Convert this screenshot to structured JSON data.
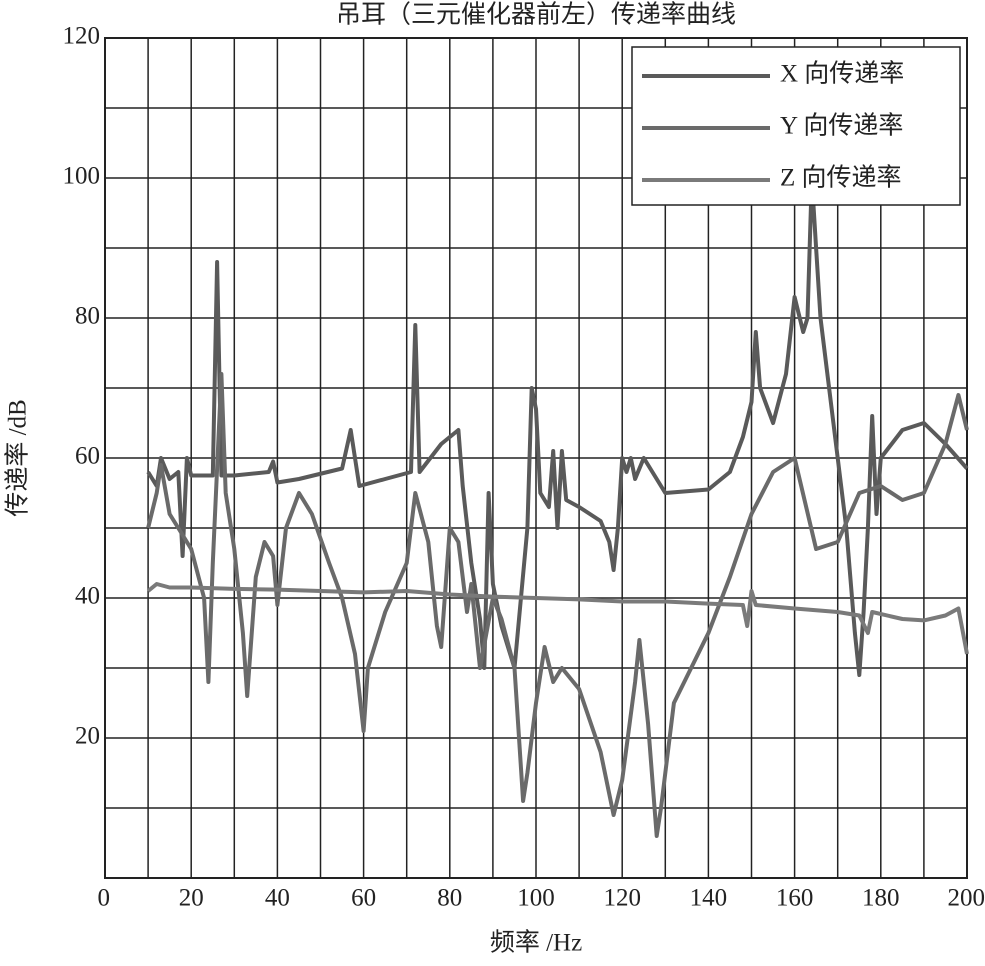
{
  "chart_data": {
    "type": "line",
    "title": "吊耳（三元催化器前左）传递率曲线",
    "xlabel": "频率 /Hz",
    "ylabel": "传递率 /dB",
    "xlim": [
      0,
      200
    ],
    "xticks": [
      0,
      20,
      40,
      60,
      80,
      100,
      120,
      140,
      160,
      180,
      200
    ],
    "ylim": [
      0,
      120
    ],
    "yticks": [
      0,
      20,
      40,
      60,
      80,
      100,
      120
    ],
    "grid": true,
    "legend": "upper right",
    "series": [
      {
        "name": "X 向传递率",
        "color": "#5a5a5a",
        "x": [
          10,
          12,
          13,
          15,
          17,
          18,
          19,
          20,
          25,
          26,
          27,
          30,
          38,
          39,
          40,
          45,
          55,
          57,
          59,
          65,
          71,
          72,
          73,
          78,
          82,
          83,
          85,
          87,
          88,
          89,
          90,
          92,
          95,
          98,
          99,
          100,
          101,
          103,
          104,
          105,
          106,
          107,
          110,
          115,
          117,
          118,
          119,
          120,
          121,
          122,
          123,
          125,
          127,
          130,
          140,
          145,
          148,
          150,
          151,
          152,
          155,
          158,
          160,
          162,
          163,
          164,
          165,
          166,
          168,
          170,
          172,
          174,
          175,
          176,
          177,
          178,
          179,
          180,
          185,
          190,
          195,
          200
        ],
        "values": [
          58,
          56,
          60,
          57,
          58,
          46,
          60,
          57.5,
          57.5,
          88,
          57.5,
          57.5,
          58,
          59.5,
          56.5,
          57,
          58.5,
          64,
          56,
          57,
          58,
          79,
          58,
          62,
          64,
          56,
          45,
          37,
          30,
          55,
          42,
          36,
          30,
          50,
          70,
          67,
          55,
          53,
          61,
          50,
          61,
          54,
          53,
          51,
          48,
          44,
          50,
          60,
          58,
          60,
          57,
          60,
          58,
          55,
          55.5,
          58,
          63,
          68,
          78,
          70,
          65,
          72,
          83,
          78,
          80,
          100,
          90,
          80,
          70,
          60,
          50,
          35,
          29,
          38,
          50,
          66,
          52,
          60,
          64,
          65,
          62,
          58.5
        ]
      },
      {
        "name": "Y 向传递率",
        "color": "#6a6a6a",
        "x": [
          10,
          12,
          13,
          15,
          17,
          20,
          23,
          24,
          25,
          27,
          28,
          30,
          32,
          33,
          35,
          37,
          39,
          40,
          42,
          45,
          48,
          52,
          55,
          58,
          60,
          61,
          65,
          70,
          72,
          75,
          77,
          78,
          80,
          82,
          84,
          85,
          87,
          90,
          92,
          95,
          97,
          98,
          100,
          102,
          104,
          106,
          110,
          115,
          118,
          120,
          123,
          124,
          126,
          128,
          129,
          132,
          140,
          145,
          150,
          155,
          160,
          165,
          170,
          175,
          180,
          185,
          190,
          195,
          198,
          200
        ],
        "values": [
          50,
          55,
          59,
          52,
          50,
          47,
          40,
          28,
          45,
          72,
          55,
          47,
          35,
          26,
          43,
          48,
          46,
          39,
          50,
          55,
          52,
          45,
          40,
          32,
          21,
          30,
          38,
          45,
          55,
          48,
          36,
          33,
          50,
          48,
          38,
          42,
          30,
          40,
          37,
          30,
          11,
          15,
          25,
          33,
          28,
          30,
          27,
          18,
          9,
          14,
          28,
          34,
          22,
          6,
          10,
          25,
          35,
          43,
          52,
          58,
          60,
          47,
          48,
          55,
          56,
          54,
          55,
          62,
          69,
          64
        ]
      },
      {
        "name": "Z 向传递率",
        "color": "#7a7a7a",
        "x": [
          10,
          12,
          15,
          20,
          30,
          40,
          50,
          60,
          70,
          80,
          90,
          100,
          110,
          120,
          130,
          140,
          148,
          149,
          150,
          151,
          160,
          170,
          175,
          177,
          178,
          185,
          190,
          195,
          198,
          200
        ],
        "values": [
          41,
          42,
          41.5,
          41.5,
          41.3,
          41.2,
          41,
          40.8,
          41,
          40.5,
          40.2,
          40,
          39.8,
          39.5,
          39.5,
          39.2,
          39,
          36,
          41,
          39,
          38.5,
          38,
          37.5,
          35,
          38,
          37,
          36.8,
          37.5,
          38.5,
          32
        ]
      }
    ]
  }
}
